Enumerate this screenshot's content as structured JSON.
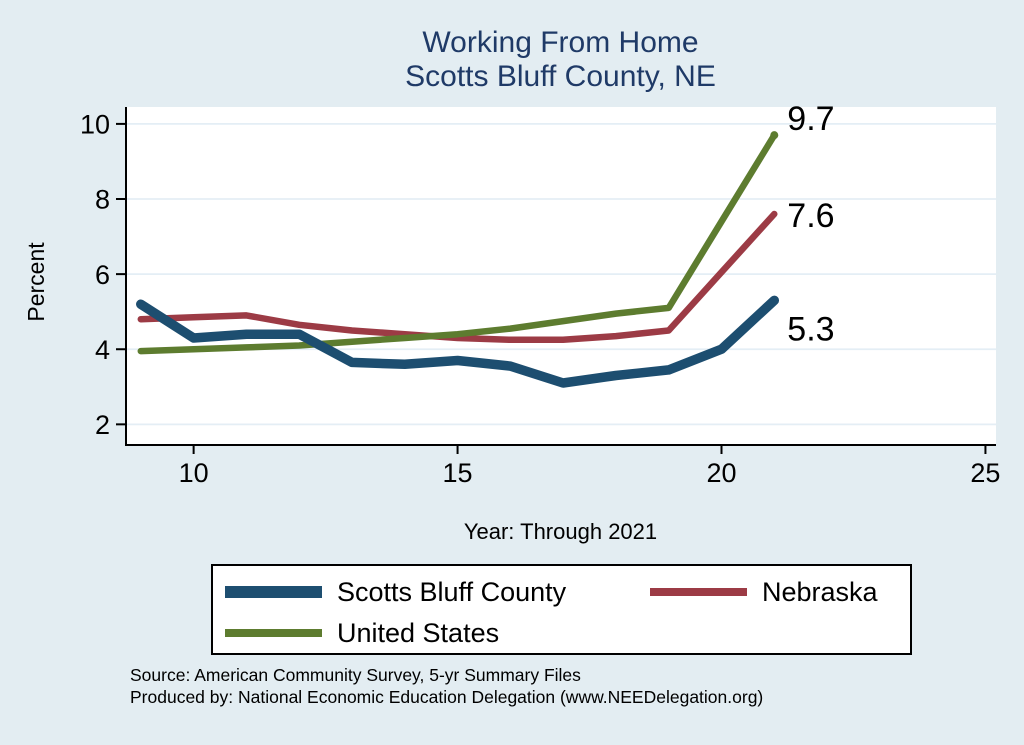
{
  "title": {
    "line1": "Working From Home",
    "line2": "Scotts Bluff County, NE"
  },
  "chart_data": {
    "type": "line",
    "title": "Working From Home",
    "subtitle": "Scotts Bluff County, NE",
    "xlabel": "Year: Through 2021",
    "ylabel": "Percent",
    "x": [
      9,
      10,
      11,
      12,
      13,
      14,
      15,
      16,
      17,
      18,
      19,
      20,
      21
    ],
    "series": [
      {
        "name": "Scotts Bluff County",
        "color": "#1d4e70",
        "line_width": 9.5,
        "values": [
          5.2,
          4.3,
          4.4,
          4.4,
          3.65,
          3.6,
          3.7,
          3.55,
          3.1,
          3.3,
          3.45,
          4.0,
          5.3
        ],
        "end_label": "5.3",
        "end_marker": false
      },
      {
        "name": "Nebraska",
        "color": "#9c3b45",
        "line_width": 6.5,
        "values": [
          4.8,
          4.85,
          4.9,
          4.65,
          4.5,
          4.4,
          4.3,
          4.25,
          4.25,
          4.35,
          4.5,
          6.05,
          7.6
        ],
        "end_label": "7.6",
        "end_marker": false
      },
      {
        "name": "United States",
        "color": "#5d7c2f",
        "line_width": 6.5,
        "values": [
          3.95,
          4.0,
          4.05,
          4.1,
          4.2,
          4.3,
          4.4,
          4.55,
          4.75,
          4.95,
          5.1,
          7.4,
          9.7
        ],
        "end_label": "9.7",
        "end_marker": true
      }
    ],
    "x_ticks": [
      10,
      15,
      20,
      25
    ],
    "y_ticks": [
      2,
      4,
      6,
      8,
      10
    ],
    "xlim": [
      8.7,
      25.2
    ],
    "ylim": [
      1.45,
      10.45
    ],
    "grid": "horizontal",
    "legend_position": "bottom"
  },
  "footer": {
    "source": "Source: American Community Survey, 5-yr Summary Files",
    "produced_by": "Produced by: National Economic Education Delegation (www.NEEDelegation.org)"
  }
}
